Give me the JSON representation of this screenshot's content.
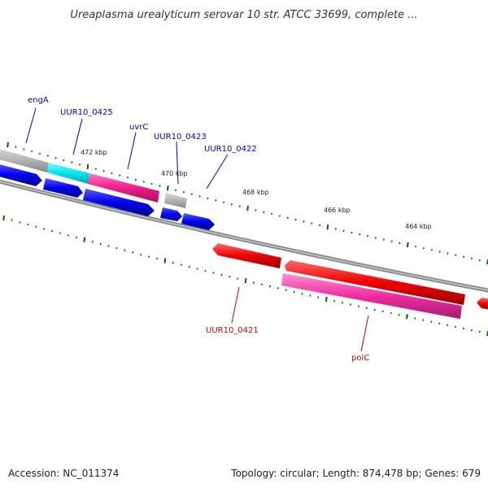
{
  "title": "Ureaplasma urealyticum serovar 10 str. ATCC 33699, complete ...",
  "footer": {
    "accession": "Accession: NC_011374",
    "stats": "Topology: circular; Length: 874,478 bp; Genes: 679"
  },
  "scale_labels": [
    "472 kbp",
    "470 kbp",
    "468 kbp",
    "466 kbp",
    "464 kbp"
  ],
  "gene_labels": {
    "forward": [
      "engA",
      "UUR10_0425",
      "uvrC",
      "UUR10_0423",
      "UUR10_0422"
    ],
    "reverse": [
      "UUR10_0421",
      "polC"
    ]
  },
  "colors": {
    "forward_label": "#0000cc",
    "reverse_label": "#cc0000",
    "cds_blue": "#0000ee",
    "gene_gray": "#b4b4b4",
    "gene_cyan": "#00e5ee",
    "gene_pink": "#ee1f8c",
    "gene_red": "#ee0000",
    "gene_magenta": "#ee2ea0",
    "backbone": "#888888",
    "tick_green": "#006400"
  }
}
